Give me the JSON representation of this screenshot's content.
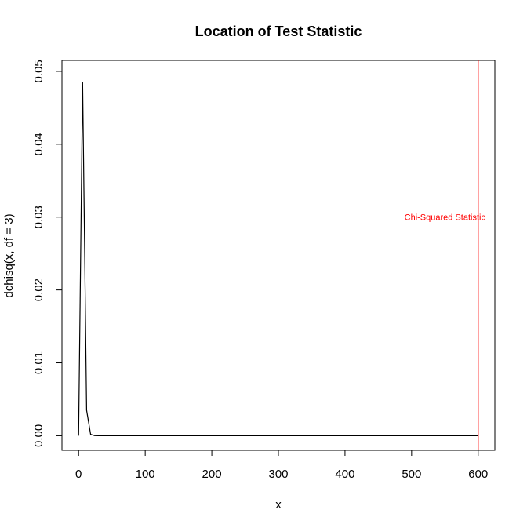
{
  "chart_data": {
    "type": "line",
    "title": "Location of Test Statistic",
    "xlabel": "x",
    "ylabel": "dchisq(x, df = 3)",
    "xlim": [
      -25,
      625
    ],
    "ylim": [
      -0.002,
      0.0515
    ],
    "xticks": [
      0,
      100,
      200,
      300,
      400,
      500,
      600
    ],
    "yticks": [
      0.0,
      0.01,
      0.02,
      0.03,
      0.04,
      0.05
    ],
    "ytick_labels": [
      "0.00",
      "0.01",
      "0.02",
      "0.03",
      "0.04",
      "0.05"
    ],
    "grid": false,
    "series": [
      {
        "color": "#000000",
        "x": [
          0,
          6,
          12,
          18,
          24,
          30,
          36,
          42,
          48,
          54,
          60,
          600
        ],
        "y": [
          0,
          0.0485,
          0.0035,
          0.0002,
          1e-05,
          0,
          0,
          0,
          0,
          0,
          0,
          0
        ]
      }
    ],
    "vline": {
      "x": 600,
      "color": "#ff0000"
    },
    "annotation": {
      "text": "Chi-Squared Statistic",
      "x": 550,
      "y": 0.03,
      "color": "#ff0000"
    }
  }
}
